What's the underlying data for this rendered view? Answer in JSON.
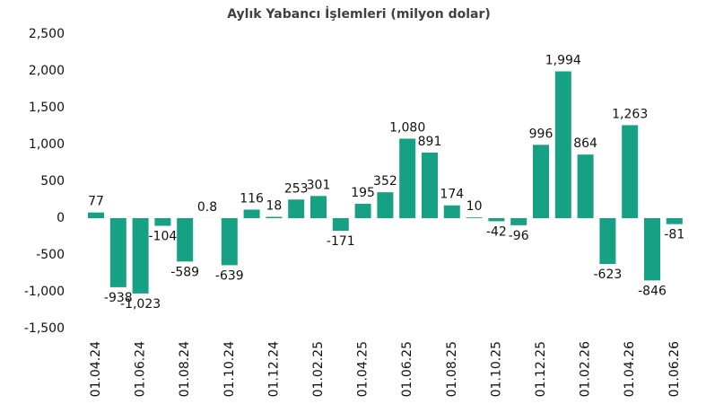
{
  "chart_data": {
    "type": "bar",
    "title": "Aylık Yabancı İşlemleri (milyon dolar)",
    "categories": [
      "01.04.24",
      null,
      "01.06.24",
      null,
      "01.08.24",
      null,
      "01.10.24",
      null,
      "01.12.24",
      null,
      "01.02.25",
      null,
      "01.04.25",
      null,
      "01.06.25",
      null,
      "01.08.25",
      null,
      "01.10.25",
      null,
      "01.12.25",
      null,
      "01.02.26",
      null,
      "01.04.26",
      null,
      "01.06.26"
    ],
    "values": [
      77,
      -938,
      -1023,
      -104,
      -589,
      0.8,
      -639,
      116,
      18,
      253,
      301,
      -171,
      195,
      352,
      1080,
      891,
      174,
      10,
      -42,
      -96,
      996,
      1994,
      864,
      -623,
      1263,
      -846,
      -81
    ],
    "value_labels": [
      "77",
      "-938",
      "-1,023",
      "-104",
      "-589",
      "0.8",
      "-639",
      "116",
      "18",
      "253",
      "301",
      "-171",
      "195",
      "352",
      "1,080",
      "891",
      "174",
      "10",
      "-42",
      "-96",
      "996",
      "1,994",
      "864",
      "-623",
      "1,263",
      "-846",
      "-81"
    ],
    "color": "#17a184",
    "negative_label_color": "#ee1c1c",
    "ylim": [
      -1500,
      2500
    ],
    "yticks": [
      {
        "value": 2500,
        "label": "2,500"
      },
      {
        "value": 2000,
        "label": "2,000"
      },
      {
        "value": 1500,
        "label": "1,500"
      },
      {
        "value": 1000,
        "label": "1,000"
      },
      500,
      0,
      -500,
      {
        "value": -1000,
        "label": "-1,000"
      },
      {
        "value": -1500,
        "label": "-1,500"
      }
    ],
    "grid": false
  }
}
